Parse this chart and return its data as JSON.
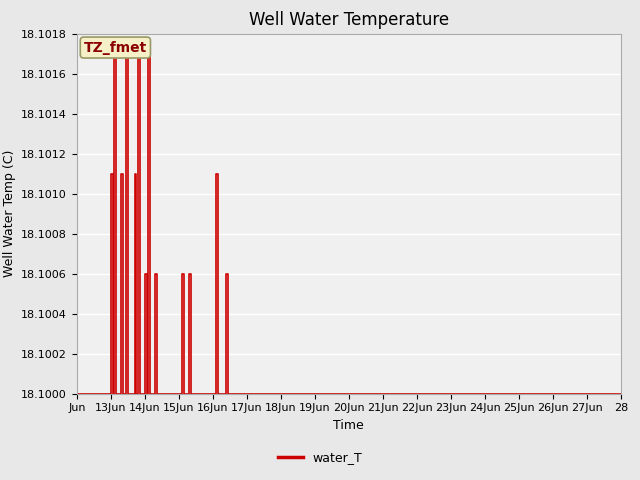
{
  "title": "Well Water Temperature",
  "xlabel": "Time",
  "ylabel": "Well Water Temp (C)",
  "legend_label": "water_T",
  "annotation_text": "TZ_fmet",
  "ylim": [
    18.1,
    18.1018
  ],
  "xlim_start": 12,
  "xlim_end": 28,
  "yticks": [
    18.1,
    18.1002,
    18.1004,
    18.1006,
    18.1008,
    18.101,
    18.1012,
    18.1014,
    18.1016,
    18.1018
  ],
  "xtick_positions": [
    12,
    13,
    14,
    15,
    16,
    17,
    18,
    19,
    20,
    21,
    22,
    23,
    24,
    25,
    26,
    27,
    28
  ],
  "xtick_labels": [
    "Jun",
    "13Jun",
    "14Jun",
    "15Jun",
    "16Jun",
    "17Jun",
    "18Jun",
    "19Jun",
    "20Jun",
    "21Jun",
    "22Jun",
    "23Jun",
    "24Jun",
    "25Jun",
    "26Jun",
    "27Jun",
    "28"
  ],
  "line_color": "#cc0000",
  "line_width": 1.2,
  "bg_color": "#e8e8e8",
  "plot_bg_color": "#f0f0f0",
  "grid_color": "#ffffff",
  "title_fontsize": 12,
  "axis_label_fontsize": 9,
  "tick_fontsize": 8,
  "data_x": [
    12.0,
    13.0,
    13.0,
    13.05,
    13.05,
    13.1,
    13.1,
    13.15,
    13.15,
    13.3,
    13.3,
    13.35,
    13.35,
    13.45,
    13.45,
    13.5,
    13.5,
    13.7,
    13.7,
    13.75,
    13.75,
    13.8,
    13.8,
    13.85,
    13.85,
    14.0,
    14.0,
    14.05,
    14.05,
    14.1,
    14.1,
    14.15,
    14.15,
    14.3,
    14.3,
    14.35,
    14.35,
    15.1,
    15.1,
    15.15,
    15.15,
    15.3,
    15.3,
    15.35,
    15.35,
    16.1,
    16.1,
    16.15,
    16.15,
    16.4,
    16.4,
    16.45,
    16.45,
    27.5,
    28.0
  ],
  "data_y": [
    18.1,
    18.1,
    18.1011,
    18.1011,
    18.1,
    18.1,
    18.1017,
    18.1017,
    18.1,
    18.1,
    18.1011,
    18.1011,
    18.1,
    18.1,
    18.1017,
    18.1017,
    18.1,
    18.1,
    18.1011,
    18.1011,
    18.1,
    18.1,
    18.1017,
    18.1017,
    18.1,
    18.1,
    18.1006,
    18.1006,
    18.1,
    18.1,
    18.1017,
    18.1017,
    18.1,
    18.1,
    18.1006,
    18.1006,
    18.1,
    18.1,
    18.1006,
    18.1006,
    18.1,
    18.1,
    18.1006,
    18.1006,
    18.1,
    18.1,
    18.1011,
    18.1011,
    18.1,
    18.1,
    18.1006,
    18.1006,
    18.1,
    18.1,
    18.1
  ]
}
